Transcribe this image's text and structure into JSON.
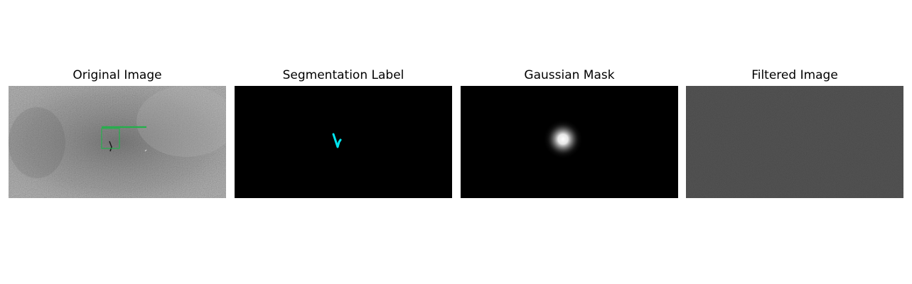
{
  "panels": [
    {
      "id": "original",
      "title": "Original Image"
    },
    {
      "id": "segmentation",
      "title": "Segmentation Label"
    },
    {
      "id": "gaussian",
      "title": "Gaussian Mask"
    },
    {
      "id": "filtered",
      "title": "Filtered Image"
    }
  ],
  "colors": {
    "background": "#ffffff",
    "bbox": "#22b04a",
    "segmentation_label": "#00e5ee",
    "mask_background": "#000000"
  }
}
